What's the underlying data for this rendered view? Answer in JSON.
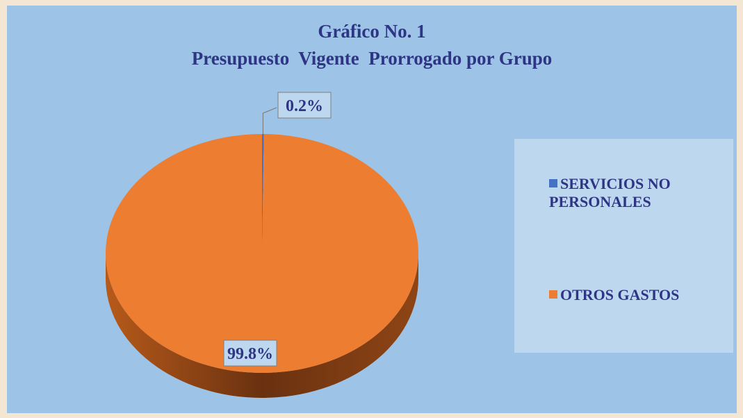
{
  "chart_data": {
    "type": "pie",
    "title": "Gráfico No. 1",
    "subtitle": "Presupuesto  Vigente  Prorrogado por Grupo",
    "categories": [
      "SERVICIOS NO PERSONALES",
      "OTROS GASTOS"
    ],
    "values": [
      0.2,
      99.8
    ],
    "value_labels": [
      "0.2%",
      "99.8%"
    ],
    "colors": [
      "#4472c4",
      "#ed7d31"
    ],
    "legend": "right"
  }
}
